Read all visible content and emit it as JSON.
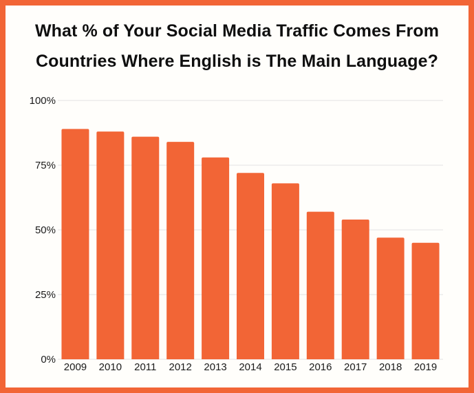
{
  "chart_data": {
    "type": "bar",
    "title": "What % of Your Social Media Traffic Comes From Countries Where English is The Main Language?",
    "title_lines": [
      "What % of Your Social Media Traffic Comes From",
      "Countries Where English is The Main Language?"
    ],
    "categories": [
      "2009",
      "2010",
      "2011",
      "2012",
      "2013",
      "2014",
      "2015",
      "2016",
      "2017",
      "2018",
      "2019"
    ],
    "values": [
      89,
      88,
      86,
      84,
      78,
      72,
      68,
      57,
      54,
      47,
      45
    ],
    "ylim": [
      0,
      100
    ],
    "yticks": [
      0,
      25,
      50,
      75,
      100
    ],
    "ytick_labels": [
      "0%",
      "25%",
      "50%",
      "75%",
      "100%"
    ],
    "xlabel": "",
    "ylabel": "",
    "grid": true,
    "legend": "none",
    "bar_color": "#f26536",
    "frame_color": "#f26536",
    "background_color": "#fffefb"
  }
}
